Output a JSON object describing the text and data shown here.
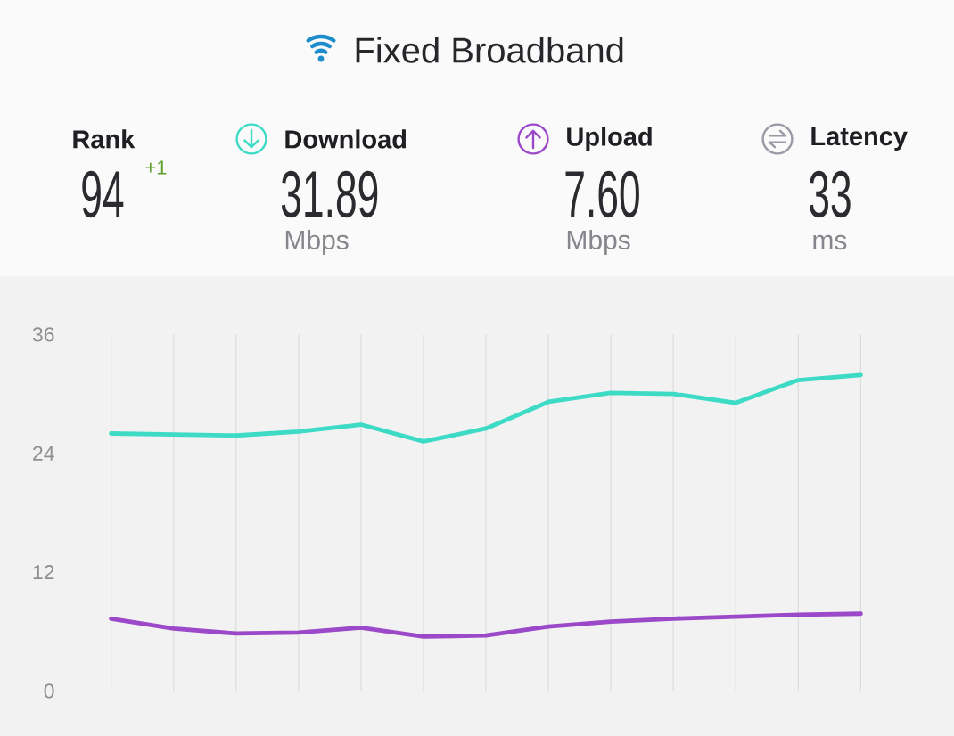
{
  "chart_data": [
    {
      "type": "other",
      "title": "Fixed Broadband",
      "annotations": [
        "Rank",
        "94",
        "+1",
        "Download",
        "31.89",
        "Mbps",
        "Upload",
        "7.60",
        "Mbps",
        "Latency",
        "33",
        "ms"
      ]
    },
    {
      "type": "line",
      "categories": [
        null,
        null,
        null,
        null,
        null,
        null,
        null,
        null,
        null,
        null,
        null,
        null,
        null
      ],
      "series": [
        {
          "color": "#3ddbc6",
          "values": [
            26.0,
            25.9,
            25.8,
            26.2,
            26.9,
            25.2,
            26.5,
            29.2,
            30.1,
            30.0,
            29.1,
            31.4,
            31.9
          ]
        },
        {
          "color": "#9b48c9",
          "values": [
            7.3,
            6.3,
            5.8,
            5.9,
            6.4,
            5.5,
            5.6,
            6.5,
            7.0,
            7.3,
            7.5,
            7.7,
            7.8
          ]
        }
      ],
      "ylim": [
        0,
        36
      ],
      "yticks": [
        0,
        12,
        24,
        36
      ],
      "grid": "x",
      "tick_labels": "y"
    }
  ]
}
